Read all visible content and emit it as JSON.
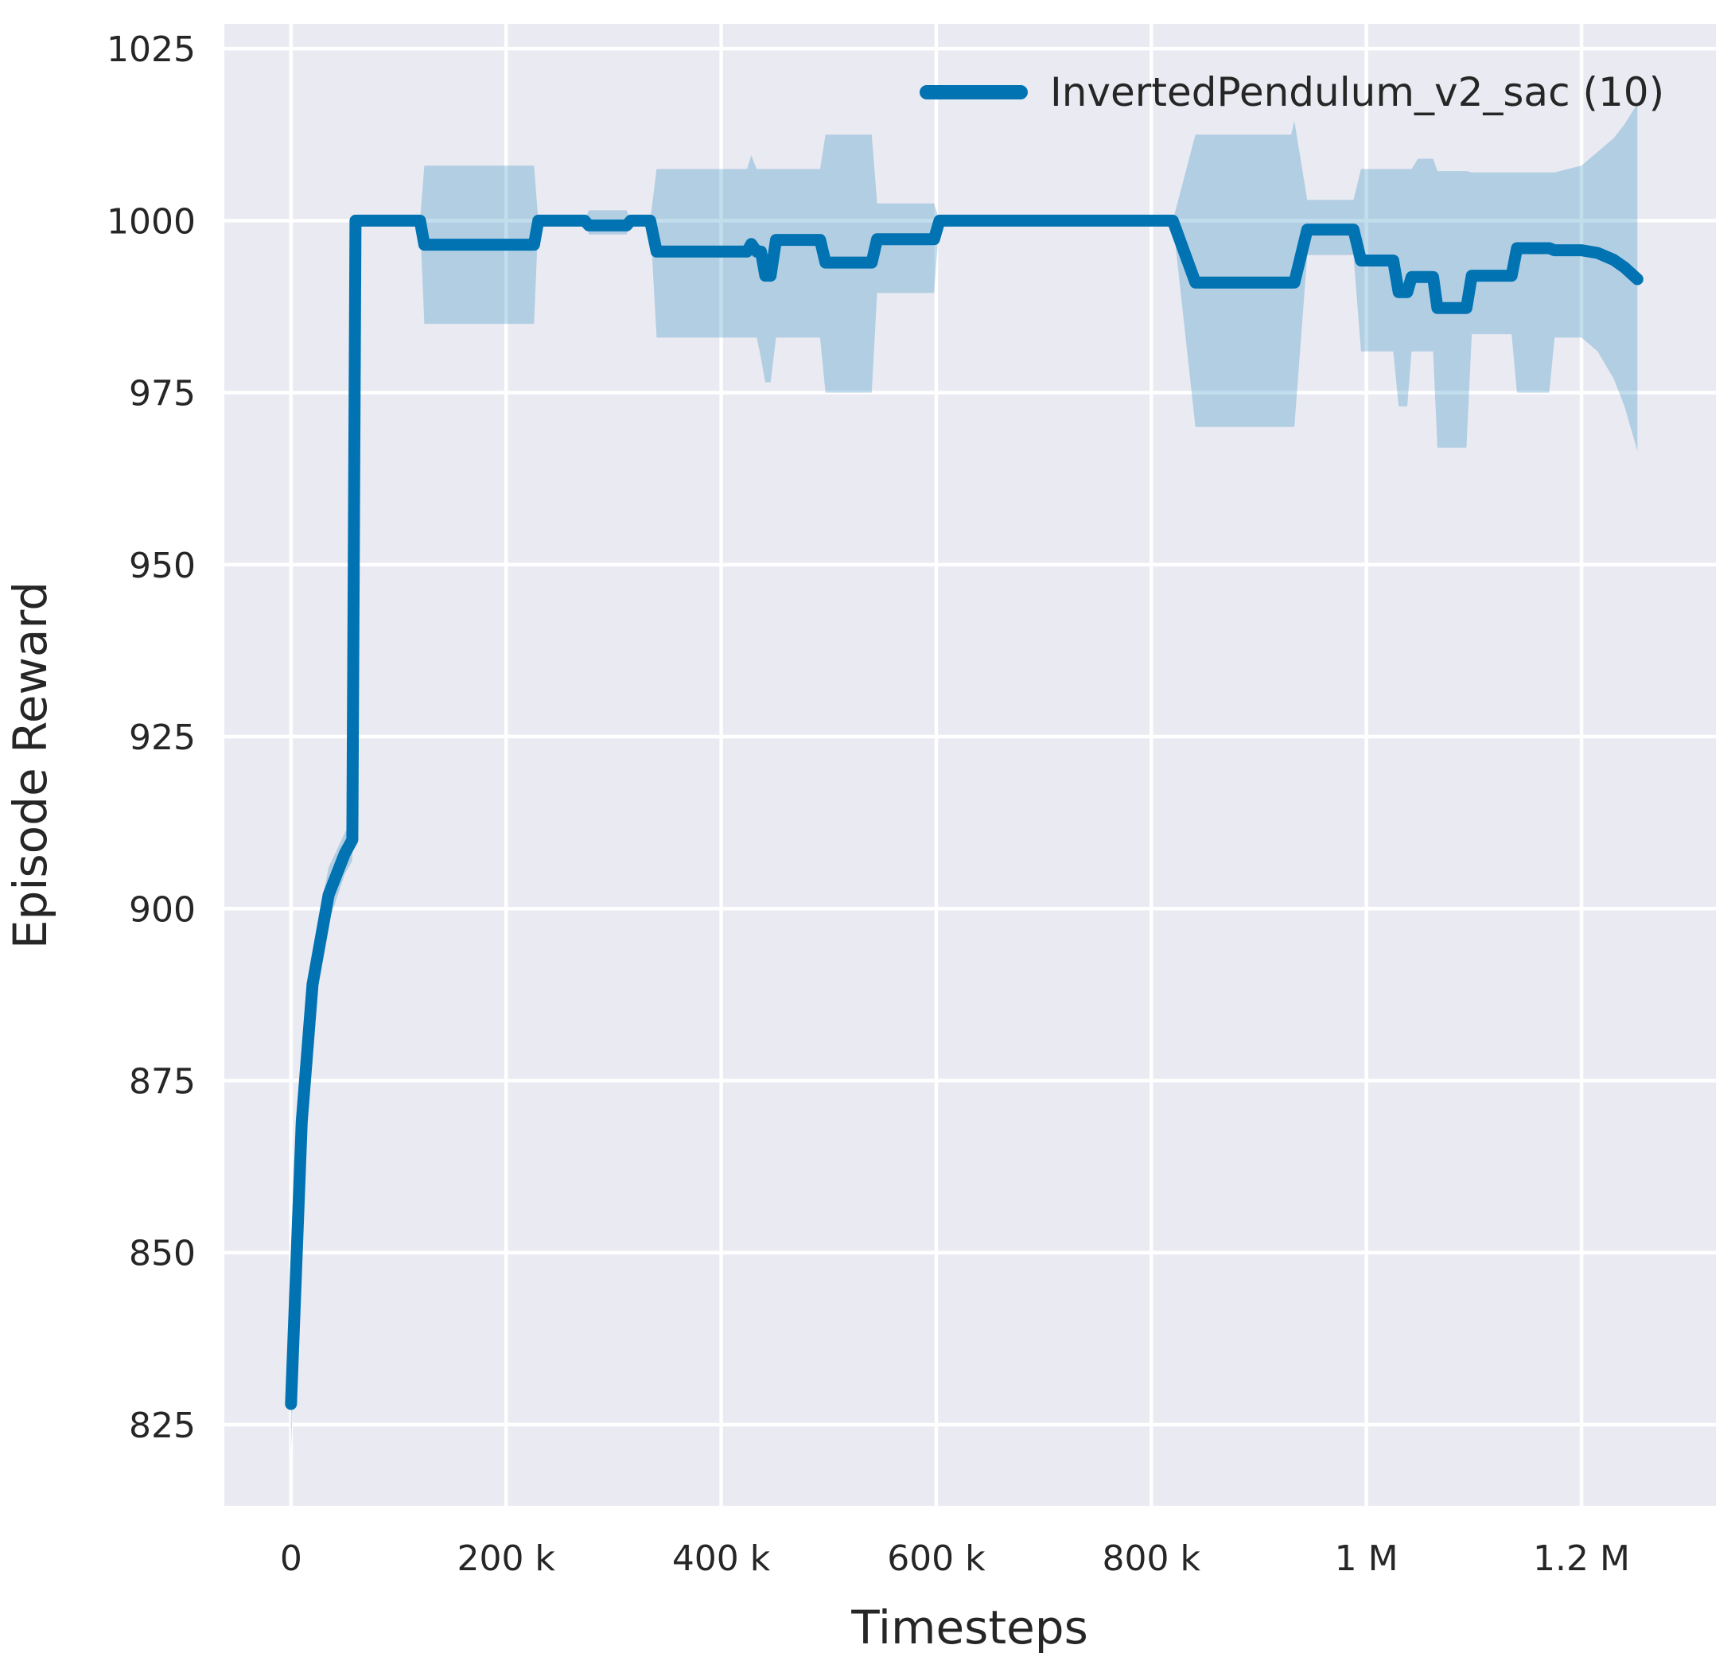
{
  "figure": {
    "background": "#ffffff",
    "plot_background": "#eaeaf2",
    "grid_color": "#ffffff",
    "text_color": "#262626"
  },
  "chart_data": {
    "type": "line",
    "title": "",
    "xlabel": "Timesteps",
    "ylabel": "Episode Reward",
    "grid": true,
    "legend_position": "upper right",
    "xlim": [
      -62000,
      1325000
    ],
    "ylim": [
      813.2,
      1028.6
    ],
    "x_ticks": [
      {
        "v": 0,
        "label": "0"
      },
      {
        "v": 200000,
        "label": "200 k"
      },
      {
        "v": 400000,
        "label": "400 k"
      },
      {
        "v": 600000,
        "label": "600 k"
      },
      {
        "v": 800000,
        "label": "800 k"
      },
      {
        "v": 1000000,
        "label": "1 M"
      },
      {
        "v": 1200000,
        "label": "1.2 M"
      }
    ],
    "y_ticks": [
      {
        "v": 825,
        "label": "825"
      },
      {
        "v": 850,
        "label": "850"
      },
      {
        "v": 875,
        "label": "875"
      },
      {
        "v": 900,
        "label": "900"
      },
      {
        "v": 925,
        "label": "925"
      },
      {
        "v": 950,
        "label": "950"
      },
      {
        "v": 975,
        "label": "975"
      },
      {
        "v": 1000,
        "label": "1000"
      },
      {
        "v": 1025,
        "label": "1025"
      }
    ],
    "series": [
      {
        "name": "InvertedPendulum_v2_sac (10)",
        "color": "#0173b2",
        "band_opacity": 0.24,
        "line_width": 15,
        "x": [
          0,
          10000,
          20000,
          35000,
          50000,
          57000,
          60000,
          120000,
          124000,
          226000,
          230000,
          273000,
          277000,
          312000,
          316000,
          334000,
          340000,
          424000,
          428000,
          433000,
          437000,
          441000,
          446000,
          451000,
          492000,
          497000,
          540000,
          545000,
          598000,
          603000,
          820000,
          841000,
          930000,
          933000,
          945000,
          988000,
          995000,
          1025000,
          1030000,
          1038000,
          1042000,
          1048000,
          1062000,
          1066000,
          1093000,
          1098000,
          1135000,
          1140000,
          1170000,
          1175000,
          1200000,
          1215000,
          1230000,
          1240000,
          1252000
        ],
        "mean": [
          828,
          869,
          889,
          902,
          908,
          910,
          1000,
          1000,
          996.5,
          996.5,
          1000,
          1000,
          999.3,
          999.3,
          1000,
          1000,
          995.5,
          995.5,
          996.6,
          995.5,
          995.5,
          992,
          992,
          997.2,
          997.2,
          993.9,
          993.9,
          997.3,
          997.3,
          1000,
          1000,
          991,
          991,
          991,
          998.7,
          998.7,
          994.2,
          994.2,
          989.6,
          989.6,
          991.8,
          991.8,
          991.8,
          987.3,
          987.3,
          992,
          992,
          996,
          996,
          995.7,
          995.7,
          995.3,
          994.3,
          993.2,
          991.5
        ],
        "lo": [
          821,
          863,
          884,
          898,
          905,
          907,
          1000,
          1000,
          985,
          985,
          1000,
          1000,
          998,
          998,
          1000,
          1000,
          983,
          983,
          983,
          983,
          980,
          976.5,
          976.5,
          983,
          983,
          975,
          975,
          989.5,
          989.5,
          1000,
          1000,
          970,
          970,
          970,
          995,
          995,
          981,
          981,
          973,
          973,
          981,
          981,
          981,
          967,
          967,
          983.5,
          983.5,
          975,
          975,
          983,
          983,
          981,
          977,
          973,
          966.5
        ],
        "hi": [
          835,
          875,
          894,
          906,
          911,
          913,
          1000,
          1000,
          1008,
          1008,
          1000,
          1000,
          1001.5,
          1001.5,
          1000,
          1000,
          1007.5,
          1007.5,
          1009.5,
          1007.5,
          1007.5,
          1007.5,
          1007.5,
          1007.5,
          1007.5,
          1012.5,
          1012.5,
          1002.5,
          1002.5,
          1000,
          1000,
          1012.5,
          1012.5,
          1014.5,
          1003,
          1003,
          1007.5,
          1007.5,
          1007.5,
          1007.5,
          1007.5,
          1009,
          1009,
          1007.2,
          1007.2,
          1007,
          1007,
          1007,
          1007,
          1007,
          1008,
          1010,
          1012,
          1014,
          1017
        ]
      }
    ]
  }
}
